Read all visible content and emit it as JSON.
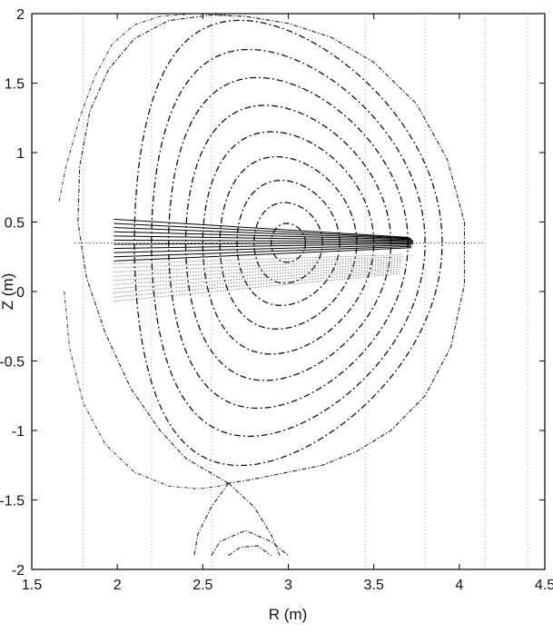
{
  "chart_data": {
    "type": "line",
    "title": "",
    "xlabel": "R (m)",
    "ylabel": "Z (m)",
    "xlim": [
      1.5,
      4.5
    ],
    "ylim": [
      -2,
      2
    ],
    "xticks": [
      1.5,
      2,
      2.5,
      3,
      3.5,
      4,
      4.5
    ],
    "xtick_labels": [
      "1.5",
      "2",
      "2.5",
      "3",
      "3.5",
      "4",
      "4.5"
    ],
    "yticks": [
      -2,
      -1.5,
      -1,
      -0.5,
      0,
      0.5,
      1,
      1.5,
      2
    ],
    "ytick_labels": [
      "-2",
      "-1.5",
      "-1",
      "-0.5",
      "0",
      "0.5",
      "1",
      "1.5",
      "2"
    ],
    "grid": false,
    "legend": "none",
    "magnetic_axis": {
      "R": 3.0,
      "Z": 0.35
    },
    "flux_surfaces": [
      {
        "a": 0.1,
        "kappa": 1.4
      },
      {
        "a": 0.2,
        "kappa": 1.45
      },
      {
        "a": 0.3,
        "kappa": 1.5
      },
      {
        "a": 0.4,
        "kappa": 1.55
      },
      {
        "a": 0.5,
        "kappa": 1.6
      },
      {
        "a": 0.6,
        "kappa": 1.65
      },
      {
        "a": 0.7,
        "kappa": 1.7
      },
      {
        "a": 0.8,
        "kappa": 1.74
      },
      {
        "a": 0.9,
        "kappa": 1.78
      }
    ],
    "x_point": {
      "R": 2.65,
      "Z": -1.38
    },
    "separatrix": {
      "R": [
        2.65,
        2.4,
        2.25,
        2.08,
        1.93,
        1.82,
        1.77,
        1.78,
        1.84,
        1.95,
        2.1,
        2.3,
        2.55,
        2.75,
        3.0,
        3.25,
        3.5,
        3.75,
        3.93,
        4.03,
        4.03,
        3.95,
        3.8,
        3.6,
        3.4,
        3.2,
        3.0,
        2.8,
        2.65
      ],
      "Z": [
        -1.38,
        -1.2,
        -1.0,
        -0.7,
        -0.3,
        0.1,
        0.5,
        0.9,
        1.3,
        1.6,
        1.82,
        1.95,
        1.99,
        1.98,
        1.93,
        1.83,
        1.65,
        1.35,
        0.95,
        0.5,
        0.05,
        -0.4,
        -0.75,
        -1.0,
        -1.15,
        -1.25,
        -1.3,
        -1.35,
        -1.38
      ]
    },
    "outer_contour": {
      "R": [
        1.66,
        1.7,
        1.78,
        1.87,
        1.97,
        2.1,
        2.25,
        2.45,
        2.65
      ],
      "Z": [
        0.65,
        0.9,
        1.25,
        1.55,
        1.78,
        1.92,
        1.98,
        2.0,
        1.99
      ]
    },
    "lower_left_contour": {
      "R": [
        1.69,
        1.72,
        1.8,
        1.93,
        2.1,
        2.3,
        2.48,
        2.6,
        2.65
      ],
      "Z": [
        0.0,
        -0.4,
        -0.8,
        -1.1,
        -1.3,
        -1.4,
        -1.42,
        -1.4,
        -1.38
      ]
    },
    "divertor_legs": [
      {
        "R": [
          2.65,
          2.55,
          2.47,
          2.45
        ],
        "Z": [
          -1.38,
          -1.55,
          -1.75,
          -1.9
        ]
      },
      {
        "R": [
          2.65,
          2.8,
          2.9,
          2.95
        ],
        "Z": [
          -1.38,
          -1.55,
          -1.75,
          -1.9
        ]
      }
    ],
    "private_contours": [
      {
        "R": [
          2.55,
          2.6,
          2.75,
          2.9,
          3.0
        ],
        "Z": [
          -1.9,
          -1.8,
          -1.72,
          -1.8,
          -1.9
        ]
      },
      {
        "R": [
          2.65,
          2.72,
          2.82,
          2.9
        ],
        "Z": [
          -1.9,
          -1.84,
          -1.83,
          -1.9
        ]
      }
    ],
    "vertical_guides_R": [
      1.8,
      2.2,
      2.55,
      3.45,
      3.8,
      4.15,
      4.4
    ],
    "midplane_line": {
      "R": [
        1.75,
        4.15
      ],
      "Z": 0.35
    },
    "solid_chords": {
      "start_R": 1.98,
      "start_Z": [
        0.22,
        0.25,
        0.28,
        0.31,
        0.34,
        0.37,
        0.4,
        0.43,
        0.46,
        0.49,
        0.52
      ],
      "end_R": [
        3.72,
        3.72,
        3.72,
        3.73,
        3.73,
        3.73,
        3.73,
        3.72,
        3.72,
        3.71,
        3.7
      ],
      "end_Z": [
        0.315,
        0.325,
        0.335,
        0.345,
        0.352,
        0.36,
        0.367,
        0.374,
        0.38,
        0.385,
        0.39
      ]
    },
    "dotted_chords": {
      "start_R": 1.98,
      "start_Z": [
        -0.07,
        -0.04,
        -0.01,
        0.02,
        0.05,
        0.08,
        0.11,
        0.14,
        0.17,
        0.2
      ],
      "end_R": [
        3.65,
        3.65,
        3.65,
        3.66,
        3.66,
        3.66,
        3.66,
        3.67,
        3.67,
        3.67
      ],
      "end_Z": [
        0.13,
        0.145,
        0.16,
        0.175,
        0.19,
        0.205,
        0.22,
        0.235,
        0.25,
        0.265
      ]
    }
  }
}
